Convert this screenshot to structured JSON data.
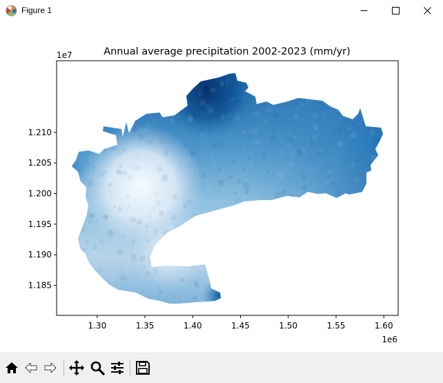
{
  "window": {
    "title": "Figure 1",
    "icons": [
      "matplotlib-icon",
      "minimize-icon",
      "maximize-icon",
      "close-icon"
    ]
  },
  "toolbar": {
    "tools": [
      "home-icon",
      "back-icon",
      "forward-icon",
      "pan-icon",
      "zoom-icon",
      "configure-subplots-icon",
      "save-icon"
    ]
  },
  "chart_data": {
    "type": "heatmap",
    "title": "Annual average precipitation 2002-2023 (mm/yr)",
    "xlabel": "",
    "ylabel": "",
    "x_offset_label": "1e6",
    "y_offset_label": "1e7",
    "x_ticks": [
      "1.30",
      "1.35",
      "1.40",
      "1.45",
      "1.50",
      "1.55",
      "1.60"
    ],
    "y_ticks": [
      "1.210",
      "1.205",
      "1.200",
      "1.195",
      "1.190",
      "1.185"
    ],
    "xlim": [
      1.2575,
      1.615
    ],
    "ylim": [
      1.1801,
      1.2217
    ],
    "colormap": "Blues",
    "colorbar": false,
    "grid": false
  }
}
